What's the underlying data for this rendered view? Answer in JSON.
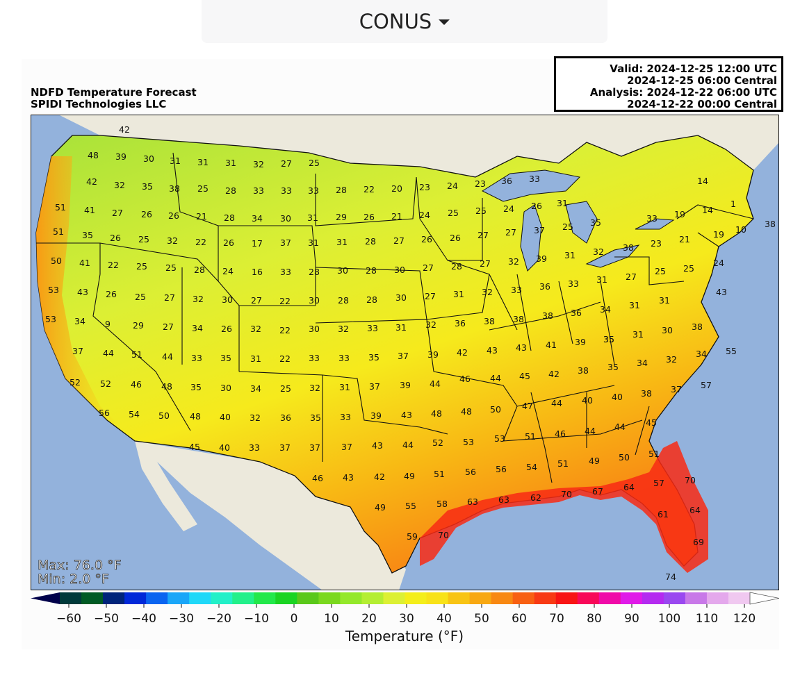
{
  "region_selector": {
    "label": "CONUS"
  },
  "title": {
    "line1": "NDFD Temperature Forecast",
    "line2": "SPIDI Technologies LLC"
  },
  "valid": {
    "line1": "Valid: 2024-12-25 12:00 UTC",
    "line2": "2024-12-25 06:00 Central",
    "line3": "Analysis: 2024-12-22 06:00 UTC",
    "line4": "2024-12-22 00:00 Central"
  },
  "stats": {
    "max": "Max: 76.0 °F",
    "min": "Min: 2.0 °F"
  },
  "colorbar": {
    "label": "Temperature (°F)",
    "ticks": [
      "−60",
      "−50",
      "−40",
      "−30",
      "−20",
      "−10",
      "0",
      "10",
      "20",
      "30",
      "40",
      "50",
      "60",
      "70",
      "80",
      "90",
      "100",
      "110",
      "120"
    ],
    "colors": [
      "#00004a",
      "#003a3a",
      "#005a24",
      "#00247a",
      "#0028d8",
      "#0a64f0",
      "#1aa6f8",
      "#20d8f8",
      "#22f0c8",
      "#22f08a",
      "#22e84a",
      "#1ad422",
      "#5ac81a",
      "#7ad81e",
      "#94e82a",
      "#b4ee32",
      "#dcf034",
      "#f4ee1a",
      "#f8e218",
      "#f8c414",
      "#f8a812",
      "#f88812",
      "#f86012",
      "#f83a14",
      "#f81414",
      "#f80858",
      "#f00aa8",
      "#e01ae8",
      "#b42af0",
      "#9a48f0",
      "#c878e8",
      "#e4a8ec",
      "#f0c8f0",
      "#ffffff"
    ]
  },
  "colors": {
    "ocean": "#93b2dc",
    "land_outside": "#ece9dc",
    "lakes": "#93b2dc",
    "border": "#111111"
  },
  "labels": [
    [
      "42",
      135,
      26
    ],
    [
      "48",
      90,
      63
    ],
    [
      "39",
      130,
      65
    ],
    [
      "30",
      170,
      68
    ],
    [
      "31",
      208,
      71
    ],
    [
      "31",
      248,
      73
    ],
    [
      "31",
      288,
      74
    ],
    [
      "32",
      328,
      76
    ],
    [
      "27",
      368,
      75
    ],
    [
      "25",
      408,
      74
    ],
    [
      "42",
      88,
      101
    ],
    [
      "32",
      128,
      106
    ],
    [
      "35",
      168,
      108
    ],
    [
      "38",
      207,
      111
    ],
    [
      "25",
      248,
      111
    ],
    [
      "28",
      288,
      114
    ],
    [
      "33",
      328,
      114
    ],
    [
      "33",
      368,
      114
    ],
    [
      "33",
      407,
      114
    ],
    [
      "28",
      447,
      113
    ],
    [
      "22",
      487,
      112
    ],
    [
      "20",
      527,
      111
    ],
    [
      "23",
      567,
      109
    ],
    [
      "24",
      607,
      107
    ],
    [
      "23",
      647,
      104
    ],
    [
      "36",
      685,
      100
    ],
    [
      "33",
      725,
      97
    ],
    [
      "51",
      43,
      138
    ],
    [
      "41",
      85,
      142
    ],
    [
      "27",
      125,
      146
    ],
    [
      "26",
      167,
      148
    ],
    [
      "26",
      206,
      150
    ],
    [
      "21",
      246,
      151
    ],
    [
      "28",
      286,
      153
    ],
    [
      "34",
      326,
      154
    ],
    [
      "30",
      367,
      154
    ],
    [
      "31",
      406,
      153
    ],
    [
      "29",
      447,
      152
    ],
    [
      "26",
      487,
      152
    ],
    [
      "21",
      527,
      151
    ],
    [
      "24",
      567,
      149
    ],
    [
      "25",
      608,
      146
    ],
    [
      "25",
      648,
      143
    ],
    [
      "24",
      688,
      140
    ],
    [
      "26",
      728,
      136
    ],
    [
      "31",
      765,
      132
    ],
    [
      "14",
      967,
      100
    ],
    [
      "1",
      1011,
      133
    ],
    [
      "14",
      974,
      142
    ],
    [
      "19",
      934,
      148
    ],
    [
      "33",
      894,
      154
    ],
    [
      "38",
      1064,
      162
    ],
    [
      "10",
      1022,
      170
    ],
    [
      "51",
      40,
      173
    ],
    [
      "35",
      82,
      178
    ],
    [
      "26",
      122,
      182
    ],
    [
      "25",
      163,
      184
    ],
    [
      "32",
      204,
      186
    ],
    [
      "22",
      245,
      188
    ],
    [
      "26",
      285,
      189
    ],
    [
      "17",
      326,
      190
    ],
    [
      "37",
      367,
      189
    ],
    [
      "31",
      407,
      189
    ],
    [
      "31",
      448,
      188
    ],
    [
      "28",
      489,
      187
    ],
    [
      "27",
      530,
      186
    ],
    [
      "26",
      570,
      184
    ],
    [
      "26",
      611,
      182
    ],
    [
      "27",
      651,
      178
    ],
    [
      "27",
      691,
      174
    ],
    [
      "37",
      732,
      171
    ],
    [
      "25",
      773,
      166
    ],
    [
      "35",
      813,
      160
    ],
    [
      "19",
      990,
      177
    ],
    [
      "21",
      941,
      184
    ],
    [
      "23",
      900,
      190
    ],
    [
      "38",
      860,
      196
    ],
    [
      "50",
      37,
      215
    ],
    [
      "41",
      78,
      218
    ],
    [
      "22",
      119,
      221
    ],
    [
      "25",
      160,
      223
    ],
    [
      "25",
      202,
      225
    ],
    [
      "28",
      243,
      228
    ],
    [
      "24",
      284,
      230
    ],
    [
      "16",
      326,
      231
    ],
    [
      "33",
      367,
      231
    ],
    [
      "28",
      408,
      231
    ],
    [
      "30",
      449,
      229
    ],
    [
      "28",
      490,
      229
    ],
    [
      "30",
      531,
      228
    ],
    [
      "27",
      572,
      225
    ],
    [
      "28",
      613,
      223
    ],
    [
      "27",
      654,
      219
    ],
    [
      "32",
      695,
      216
    ],
    [
      "39",
      735,
      212
    ],
    [
      "31",
      776,
      207
    ],
    [
      "32",
      817,
      202
    ],
    [
      "25",
      947,
      226
    ],
    [
      "25",
      906,
      230
    ],
    [
      "27",
      864,
      238
    ],
    [
      "24",
      990,
      218
    ],
    [
      "53",
      33,
      257
    ],
    [
      "43",
      75,
      260
    ],
    [
      "26",
      116,
      263
    ],
    [
      "25",
      158,
      267
    ],
    [
      "27",
      200,
      268
    ],
    [
      "32",
      241,
      270
    ],
    [
      "30",
      283,
      271
    ],
    [
      "27",
      325,
      272
    ],
    [
      "22",
      366,
      273
    ],
    [
      "30",
      408,
      272
    ],
    [
      "28",
      450,
      272
    ],
    [
      "28",
      491,
      271
    ],
    [
      "30",
      533,
      268
    ],
    [
      "27",
      575,
      266
    ],
    [
      "31",
      616,
      263
    ],
    [
      "32",
      657,
      260
    ],
    [
      "33",
      699,
      257
    ],
    [
      "36",
      740,
      252
    ],
    [
      "33",
      781,
      248
    ],
    [
      "31",
      822,
      242
    ],
    [
      "43",
      994,
      260
    ],
    [
      "31",
      912,
      272
    ],
    [
      "31",
      869,
      279
    ],
    [
      "53",
      29,
      299
    ],
    [
      "34",
      71,
      302
    ],
    [
      "9",
      111,
      306
    ],
    [
      "29",
      155,
      308
    ],
    [
      "27",
      198,
      310
    ],
    [
      "34",
      240,
      312
    ],
    [
      "26",
      282,
      313
    ],
    [
      "32",
      324,
      313
    ],
    [
      "22",
      366,
      315
    ],
    [
      "30",
      408,
      313
    ],
    [
      "32",
      450,
      313
    ],
    [
      "33",
      492,
      312
    ],
    [
      "31",
      533,
      311
    ],
    [
      "32",
      576,
      307
    ],
    [
      "36",
      618,
      305
    ],
    [
      "38",
      660,
      302
    ],
    [
      "38",
      702,
      299
    ],
    [
      "38",
      744,
      294
    ],
    [
      "36",
      785,
      290
    ],
    [
      "34",
      827,
      285
    ],
    [
      "30",
      916,
      315
    ],
    [
      "31",
      874,
      321
    ],
    [
      "38",
      959,
      310
    ],
    [
      "35",
      832,
      328
    ],
    [
      "37",
      68,
      345
    ],
    [
      "44",
      112,
      348
    ],
    [
      "51",
      153,
      350
    ],
    [
      "44",
      197,
      353
    ],
    [
      "33",
      239,
      355
    ],
    [
      "35",
      281,
      355
    ],
    [
      "31",
      324,
      356
    ],
    [
      "22",
      366,
      356
    ],
    [
      "33",
      408,
      355
    ],
    [
      "33",
      451,
      355
    ],
    [
      "35",
      494,
      354
    ],
    [
      "37",
      536,
      352
    ],
    [
      "39",
      579,
      350
    ],
    [
      "42",
      621,
      347
    ],
    [
      "43",
      664,
      344
    ],
    [
      "43",
      706,
      340
    ],
    [
      "41",
      749,
      336
    ],
    [
      "39",
      791,
      332
    ],
    [
      "35",
      832,
      328
    ],
    [
      "55",
      1008,
      345
    ],
    [
      "34",
      965,
      349
    ],
    [
      "32",
      922,
      357
    ],
    [
      "34",
      880,
      362
    ],
    [
      "35",
      838,
      368
    ],
    [
      "38",
      795,
      373
    ],
    [
      "42",
      753,
      378
    ],
    [
      "45",
      711,
      381
    ],
    [
      "44",
      669,
      384
    ],
    [
      "46",
      625,
      385
    ],
    [
      "52",
      64,
      390
    ],
    [
      "52",
      108,
      392
    ],
    [
      "46",
      152,
      393
    ],
    [
      "48",
      196,
      396
    ],
    [
      "35",
      238,
      397
    ],
    [
      "30",
      281,
      398
    ],
    [
      "34",
      324,
      399
    ],
    [
      "25",
      367,
      399
    ],
    [
      "32",
      409,
      398
    ],
    [
      "31",
      452,
      397
    ],
    [
      "37",
      495,
      396
    ],
    [
      "39",
      539,
      394
    ],
    [
      "44",
      582,
      392
    ],
    [
      "57",
      972,
      394
    ],
    [
      "37",
      929,
      400
    ],
    [
      "38",
      886,
      406
    ],
    [
      "40",
      844,
      411
    ],
    [
      "40",
      801,
      416
    ],
    [
      "44",
      757,
      420
    ],
    [
      "47",
      715,
      424
    ],
    [
      "56",
      106,
      434
    ],
    [
      "54",
      149,
      436
    ],
    [
      "50",
      192,
      438
    ],
    [
      "48",
      237,
      439
    ],
    [
      "40",
      280,
      440
    ],
    [
      "32",
      323,
      441
    ],
    [
      "36",
      367,
      441
    ],
    [
      "35",
      410,
      441
    ],
    [
      "33",
      453,
      440
    ],
    [
      "39",
      497,
      438
    ],
    [
      "43",
      541,
      437
    ],
    [
      "48",
      584,
      435
    ],
    [
      "48",
      627,
      432
    ],
    [
      "50",
      669,
      429
    ],
    [
      "45",
      893,
      448
    ],
    [
      "44",
      848,
      454
    ],
    [
      "44",
      805,
      460
    ],
    [
      "46",
      762,
      464
    ],
    [
      "51",
      719,
      468
    ],
    [
      "53",
      675,
      471
    ],
    [
      "53",
      630,
      476
    ],
    [
      "52",
      586,
      477
    ],
    [
      "44",
      543,
      480
    ],
    [
      "43",
      499,
      481
    ],
    [
      "37",
      455,
      483
    ],
    [
      "45",
      236,
      483
    ],
    [
      "40",
      279,
      484
    ],
    [
      "33",
      322,
      484
    ],
    [
      "37",
      366,
      484
    ],
    [
      "37",
      409,
      484
    ],
    [
      "51",
      897,
      493
    ],
    [
      "50",
      854,
      498
    ],
    [
      "49",
      811,
      503
    ],
    [
      "51",
      766,
      507
    ],
    [
      "54",
      721,
      512
    ],
    [
      "56",
      677,
      515
    ],
    [
      "56",
      633,
      519
    ],
    [
      "51",
      588,
      522
    ],
    [
      "49",
      545,
      525
    ],
    [
      "42",
      502,
      526
    ],
    [
      "43",
      457,
      527
    ],
    [
      "46",
      413,
      528
    ],
    [
      "70",
      949,
      531
    ],
    [
      "57",
      904,
      535
    ],
    [
      "64",
      861,
      541
    ],
    [
      "67",
      816,
      547
    ],
    [
      "70",
      771,
      551
    ],
    [
      "62",
      727,
      556
    ],
    [
      "63",
      681,
      559
    ],
    [
      "63",
      636,
      562
    ],
    [
      "58",
      592,
      565
    ],
    [
      "55",
      547,
      568
    ],
    [
      "49",
      503,
      570
    ],
    [
      "61",
      910,
      580
    ],
    [
      "64",
      956,
      574
    ],
    [
      "70",
      594,
      610
    ],
    [
      "59",
      549,
      612
    ],
    [
      "69",
      961,
      620
    ],
    [
      "74",
      921,
      670
    ]
  ]
}
